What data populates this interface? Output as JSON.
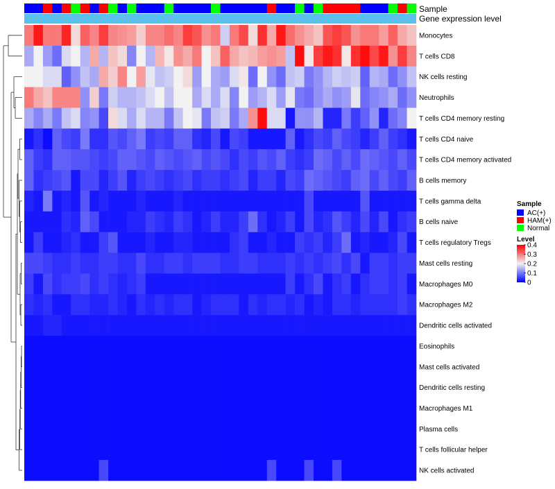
{
  "chart_data": {
    "type": "heatmap",
    "title": "",
    "annotation_labels": [
      "Sample",
      "Gene expression level"
    ],
    "row_labels": [
      "Monocytes",
      "T cells CD8",
      "NK cells resting",
      "Neutrophils",
      "T cells CD4 memory resting",
      "T cells CD4 naive",
      "T cells CD4 memory activated",
      "B cells memory",
      "T cells gamma delta",
      "B cells naive",
      "T cells regulatory  Tregs",
      "Mast cells resting",
      "Macrophages M0",
      "Macrophages M2",
      "Dendritic cells activated",
      "Eosinophils",
      "Mast cells activated",
      "Dendritic cells resting",
      "Macrophages M1",
      "Plasma cells",
      "T cells follicular helper",
      "NK cells activated"
    ],
    "sample_groups": [
      "AC(+)",
      "AC(+)",
      "HAM(+)",
      "AC(+)",
      "HAM(+)",
      "Normal",
      "HAM(+)",
      "AC(+)",
      "HAM(+)",
      "Normal",
      "AC(+)",
      "Normal",
      "AC(+)",
      "AC(+)",
      "AC(+)",
      "Normal",
      "AC(+)",
      "AC(+)",
      "AC(+)",
      "AC(+)",
      "Normal",
      "AC(+)",
      "AC(+)",
      "AC(+)",
      "AC(+)",
      "AC(+)",
      "HAM(+)",
      "AC(+)",
      "AC(+)",
      "Normal",
      "AC(+)",
      "Normal",
      "HAM(+)",
      "HAM(+)",
      "HAM(+)",
      "HAM(+)",
      "AC(+)",
      "AC(+)",
      "AC(+)",
      "Normal",
      "HAM(+)",
      "Normal"
    ],
    "legend": {
      "sample_title": "Sample",
      "sample_items": [
        {
          "label": "AC(+)",
          "color": "#0000ff"
        },
        {
          "label": "HAM(+)",
          "color": "#ff0000"
        },
        {
          "label": "Normal",
          "color": "#00ff00"
        }
      ],
      "level_title": "Level",
      "level_ticks": [
        "0.4",
        "0.3",
        "0.2",
        "0.1",
        "0"
      ],
      "level_range": [
        0,
        0.4
      ],
      "placement": "right"
    },
    "colors": {
      "low": "#0000ff",
      "mid": "#f2f2f2",
      "high": "#ff0000",
      "annotation_bar": "#5bc0eb",
      "tree": "#333333"
    },
    "value_range": [
      0,
      0.4
    ],
    "values": [
      [
        0.3,
        0.38,
        0.3,
        0.3,
        0.37,
        0.22,
        0.32,
        0.29,
        0.35,
        0.29,
        0.28,
        0.27,
        0.23,
        0.29,
        0.29,
        0.31,
        0.29,
        0.35,
        0.33,
        0.28,
        0.3,
        0.17,
        0.3,
        0.34,
        0.22,
        0.36,
        0.26,
        0.38,
        0.31,
        0.28,
        0.26,
        0.24,
        0.33,
        0.35,
        0.33,
        0.28,
        0.3,
        0.3,
        0.27,
        0.32,
        0.26,
        0.24
      ],
      [
        0.14,
        0.2,
        0.13,
        0.09,
        0.18,
        0.2,
        0.15,
        0.26,
        0.15,
        0.24,
        0.22,
        0.11,
        0.2,
        0.15,
        0.25,
        0.21,
        0.28,
        0.26,
        0.3,
        0.2,
        0.24,
        0.32,
        0.26,
        0.24,
        0.25,
        0.27,
        0.28,
        0.27,
        0.16,
        0.39,
        0.21,
        0.35,
        0.38,
        0.36,
        0.21,
        0.36,
        0.39,
        0.34,
        0.38,
        0.28,
        0.35,
        0.29
      ],
      [
        0.2,
        0.2,
        0.18,
        0.18,
        0.08,
        0.12,
        0.16,
        0.14,
        0.26,
        0.23,
        0.29,
        0.2,
        0.27,
        0.19,
        0.16,
        0.17,
        0.2,
        0.22,
        0.13,
        0.2,
        0.14,
        0.13,
        0.18,
        0.21,
        0.09,
        0.2,
        0.12,
        0.09,
        0.16,
        0.17,
        0.1,
        0.12,
        0.15,
        0.17,
        0.16,
        0.17,
        0.08,
        0.15,
        0.14,
        0.09,
        0.12,
        0.16
      ],
      [
        0.3,
        0.26,
        0.24,
        0.29,
        0.29,
        0.29,
        0.12,
        0.23,
        0.1,
        0.17,
        0.15,
        0.15,
        0.16,
        0.18,
        0.2,
        0.16,
        0.2,
        0.2,
        0.14,
        0.18,
        0.14,
        0.18,
        0.11,
        0.2,
        0.13,
        0.15,
        0.18,
        0.13,
        0.19,
        0.1,
        0.09,
        0.12,
        0.14,
        0.12,
        0.13,
        0.19,
        0.09,
        0.11,
        0.12,
        0.14,
        0.09,
        0.12
      ],
      [
        0.14,
        0.11,
        0.14,
        0.1,
        0.16,
        0.18,
        0.11,
        0.12,
        0.06,
        0.22,
        0.18,
        0.14,
        0.18,
        0.15,
        0.15,
        0.1,
        0.16,
        0.2,
        0.19,
        0.1,
        0.16,
        0.17,
        0.1,
        0.14,
        0.28,
        0.39,
        0.18,
        0.18,
        0.02,
        0.12,
        0.12,
        0.15,
        0.03,
        0.03,
        0.1,
        0.05,
        0.08,
        0.12,
        0.03,
        0.09,
        0.11,
        0.2
      ],
      [
        0.02,
        0.04,
        0.01,
        0.08,
        0.06,
        0.05,
        0.1,
        0.04,
        0.04,
        0.07,
        0.06,
        0.08,
        0.1,
        0.05,
        0.06,
        0.05,
        0.08,
        0.08,
        0.04,
        0.03,
        0.06,
        0.02,
        0.06,
        0.05,
        0.02,
        0.02,
        0.02,
        0.02,
        0.08,
        0.02,
        0.04,
        0.06,
        0.05,
        0.08,
        0.06,
        0.05,
        0.03,
        0.05,
        0.08,
        0.05,
        0.04,
        0.02
      ],
      [
        0.08,
        0.05,
        0.04,
        0.08,
        0.08,
        0.07,
        0.07,
        0.06,
        0.05,
        0.06,
        0.08,
        0.08,
        0.07,
        0.06,
        0.08,
        0.07,
        0.06,
        0.07,
        0.08,
        0.06,
        0.07,
        0.06,
        0.04,
        0.06,
        0.05,
        0.07,
        0.06,
        0.08,
        0.05,
        0.04,
        0.05,
        0.09,
        0.08,
        0.06,
        0.08,
        0.06,
        0.09,
        0.08,
        0.07,
        0.06,
        0.08,
        0.06
      ],
      [
        0.08,
        0.04,
        0.05,
        0.06,
        0.07,
        0.02,
        0.06,
        0.06,
        0.03,
        0.05,
        0.07,
        0.03,
        0.05,
        0.06,
        0.05,
        0.04,
        0.05,
        0.06,
        0.04,
        0.05,
        0.05,
        0.04,
        0.05,
        0.06,
        0.03,
        0.05,
        0.05,
        0.03,
        0.06,
        0.05,
        0.09,
        0.08,
        0.07,
        0.06,
        0.05,
        0.08,
        0.09,
        0.06,
        0.08,
        0.06,
        0.05,
        0.08
      ],
      [
        0.03,
        0.02,
        0.1,
        0.02,
        0.03,
        0.02,
        0.07,
        0.02,
        0.03,
        0.02,
        0.02,
        0.02,
        0.03,
        0.02,
        0.02,
        0.02,
        0.03,
        0.02,
        0.02,
        0.02,
        0.02,
        0.02,
        0.02,
        0.02,
        0.02,
        0.02,
        0.02,
        0.02,
        0.02,
        0.02,
        0.06,
        0.02,
        0.02,
        0.02,
        0.02,
        0.02,
        0.07,
        0.02,
        0.02,
        0.02,
        0.02,
        0.02
      ],
      [
        0.02,
        0.02,
        0.02,
        0.02,
        0.04,
        0.03,
        0.08,
        0.06,
        0.02,
        0.02,
        0.02,
        0.03,
        0.03,
        0.05,
        0.04,
        0.03,
        0.05,
        0.04,
        0.02,
        0.03,
        0.05,
        0.03,
        0.03,
        0.05,
        0.09,
        0.04,
        0.02,
        0.03,
        0.05,
        0.02,
        0.06,
        0.03,
        0.04,
        0.07,
        0.05,
        0.03,
        0.06,
        0.03,
        0.06,
        0.02,
        0.04,
        0.05
      ],
      [
        0.02,
        0.05,
        0.02,
        0.02,
        0.03,
        0.04,
        0.02,
        0.02,
        0.05,
        0.07,
        0.02,
        0.02,
        0.02,
        0.03,
        0.02,
        0.02,
        0.03,
        0.03,
        0.02,
        0.02,
        0.02,
        0.02,
        0.04,
        0.05,
        0.02,
        0.02,
        0.03,
        0.02,
        0.02,
        0.05,
        0.04,
        0.05,
        0.03,
        0.05,
        0.09,
        0.02,
        0.03,
        0.02,
        0.02,
        0.03,
        0.06,
        0.02
      ],
      [
        0.06,
        0.06,
        0.05,
        0.04,
        0.04,
        0.05,
        0.04,
        0.04,
        0.05,
        0.05,
        0.04,
        0.04,
        0.06,
        0.04,
        0.04,
        0.05,
        0.05,
        0.04,
        0.05,
        0.05,
        0.05,
        0.04,
        0.04,
        0.05,
        0.05,
        0.04,
        0.04,
        0.04,
        0.05,
        0.04,
        0.05,
        0.04,
        0.05,
        0.06,
        0.04,
        0.06,
        0.02,
        0.05,
        0.05,
        0.04,
        0.05,
        0.05
      ],
      [
        0.05,
        0.02,
        0.06,
        0.04,
        0.05,
        0.05,
        0.06,
        0.04,
        0.05,
        0.04,
        0.03,
        0.04,
        0.05,
        0.02,
        0.02,
        0.02,
        0.02,
        0.02,
        0.02,
        0.02,
        0.02,
        0.02,
        0.02,
        0.02,
        0.02,
        0.02,
        0.02,
        0.02,
        0.05,
        0.02,
        0.04,
        0.06,
        0.02,
        0.04,
        0.05,
        0.02,
        0.04,
        0.05,
        0.05,
        0.04,
        0.05,
        0.02
      ],
      [
        0.04,
        0.03,
        0.04,
        0.02,
        0.02,
        0.04,
        0.04,
        0.03,
        0.03,
        0.04,
        0.03,
        0.02,
        0.04,
        0.03,
        0.04,
        0.03,
        0.04,
        0.04,
        0.02,
        0.03,
        0.04,
        0.04,
        0.04,
        0.02,
        0.04,
        0.03,
        0.04,
        0.04,
        0.03,
        0.04,
        0.02,
        0.03,
        0.02,
        0.04,
        0.04,
        0.03,
        0.04,
        0.04,
        0.04,
        0.04,
        0.05,
        0.04
      ],
      [
        0.02,
        0.02,
        0.03,
        0.03,
        0.02,
        0.02,
        0.02,
        0.02,
        0.02,
        0.02,
        0.02,
        0.02,
        0.02,
        0.02,
        0.02,
        0.02,
        0.02,
        0.02,
        0.02,
        0.02,
        0.02,
        0.02,
        0.02,
        0.02,
        0.02,
        0.02,
        0.02,
        0.02,
        0.02,
        0.02,
        0.02,
        0.02,
        0.02,
        0.02,
        0.02,
        0.02,
        0.02,
        0.02,
        0.02,
        0.02,
        0.02,
        0.02
      ],
      [
        0.01,
        0.01,
        0.01,
        0.01,
        0.01,
        0.01,
        0.01,
        0.01,
        0.01,
        0.01,
        0.01,
        0.01,
        0.01,
        0.01,
        0.01,
        0.01,
        0.01,
        0.01,
        0.01,
        0.01,
        0.01,
        0.01,
        0.01,
        0.01,
        0.01,
        0.01,
        0.01,
        0.01,
        0.01,
        0.01,
        0.01,
        0.01,
        0.01,
        0.01,
        0.01,
        0.01,
        0.01,
        0.01,
        0.01,
        0.01,
        0.01,
        0.01
      ],
      [
        0.01,
        0.01,
        0.01,
        0.01,
        0.01,
        0.01,
        0.01,
        0.01,
        0.01,
        0.01,
        0.01,
        0.01,
        0.01,
        0.01,
        0.01,
        0.01,
        0.01,
        0.01,
        0.01,
        0.01,
        0.01,
        0.01,
        0.01,
        0.01,
        0.01,
        0.01,
        0.01,
        0.01,
        0.01,
        0.01,
        0.01,
        0.01,
        0.01,
        0.01,
        0.01,
        0.01,
        0.01,
        0.01,
        0.01,
        0.01,
        0.01,
        0.01
      ],
      [
        0.01,
        0.01,
        0.01,
        0.01,
        0.01,
        0.01,
        0.01,
        0.01,
        0.01,
        0.01,
        0.01,
        0.01,
        0.01,
        0.01,
        0.01,
        0.01,
        0.01,
        0.01,
        0.01,
        0.01,
        0.01,
        0.01,
        0.01,
        0.01,
        0.01,
        0.01,
        0.01,
        0.01,
        0.01,
        0.01,
        0.01,
        0.01,
        0.01,
        0.01,
        0.01,
        0.01,
        0.01,
        0.01,
        0.01,
        0.01,
        0.01,
        0.01
      ],
      [
        0.01,
        0.01,
        0.01,
        0.01,
        0.01,
        0.01,
        0.01,
        0.01,
        0.01,
        0.01,
        0.01,
        0.01,
        0.01,
        0.01,
        0.01,
        0.01,
        0.01,
        0.01,
        0.01,
        0.01,
        0.01,
        0.01,
        0.01,
        0.01,
        0.01,
        0.01,
        0.01,
        0.01,
        0.01,
        0.01,
        0.01,
        0.01,
        0.01,
        0.01,
        0.01,
        0.01,
        0.01,
        0.01,
        0.01,
        0.01,
        0.01,
        0.01
      ],
      [
        0.01,
        0.01,
        0.01,
        0.01,
        0.01,
        0.01,
        0.01,
        0.01,
        0.01,
        0.01,
        0.01,
        0.01,
        0.01,
        0.01,
        0.01,
        0.01,
        0.01,
        0.01,
        0.01,
        0.01,
        0.01,
        0.01,
        0.01,
        0.01,
        0.01,
        0.01,
        0.01,
        0.01,
        0.01,
        0.01,
        0.01,
        0.01,
        0.01,
        0.01,
        0.01,
        0.01,
        0.01,
        0.01,
        0.01,
        0.01,
        0.01,
        0.01
      ],
      [
        0.01,
        0.01,
        0.01,
        0.01,
        0.01,
        0.01,
        0.01,
        0.01,
        0.01,
        0.01,
        0.01,
        0.01,
        0.01,
        0.01,
        0.01,
        0.01,
        0.01,
        0.01,
        0.01,
        0.01,
        0.01,
        0.01,
        0.01,
        0.01,
        0.01,
        0.01,
        0.01,
        0.01,
        0.01,
        0.01,
        0.01,
        0.01,
        0.01,
        0.01,
        0.01,
        0.01,
        0.01,
        0.01,
        0.01,
        0.01,
        0.01,
        0.01
      ],
      [
        0.01,
        0.01,
        0.01,
        0.01,
        0.01,
        0.01,
        0.01,
        0.01,
        0.06,
        0.01,
        0.01,
        0.01,
        0.01,
        0.01,
        0.01,
        0.01,
        0.01,
        0.01,
        0.01,
        0.01,
        0.01,
        0.01,
        0.01,
        0.01,
        0.01,
        0.01,
        0.06,
        0.01,
        0.01,
        0.01,
        0.06,
        0.01,
        0.01,
        0.06,
        0.01,
        0.01,
        0.01,
        0.01,
        0.01,
        0.01,
        0.01,
        0.01
      ]
    ]
  }
}
